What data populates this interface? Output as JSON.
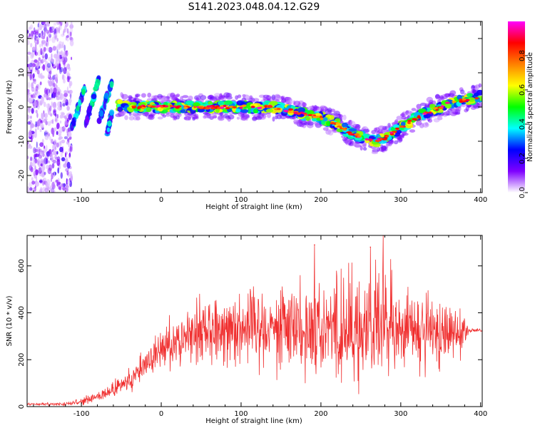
{
  "title": "S141.2023.048.04.12.G29",
  "chart_data": [
    {
      "type": "heatmap",
      "xlabel": "Height of straight line (km)",
      "ylabel": "Frequency (Hz)",
      "xlim": [
        -168,
        402
      ],
      "ylim": [
        -25,
        25
      ],
      "xticks": [
        -100,
        0,
        100,
        200,
        300,
        400
      ],
      "yticks": [
        -20,
        -10,
        0,
        10,
        20
      ],
      "colorbar": {
        "label": "Normalized spectral amplitude",
        "range": [
          0,
          1
        ],
        "ticks": [
          0.0,
          0.2,
          0.4,
          0.6,
          0.8
        ],
        "colormap": [
          "#ffffff",
          "#7f00ff",
          "#0000ff",
          "#00ffff",
          "#00ff00",
          "#ffff00",
          "#ff8000",
          "#ff0000",
          "#ff00ff"
        ]
      },
      "ridge": {
        "x": [
          -55,
          -40,
          -20,
          0,
          20,
          40,
          60,
          80,
          100,
          120,
          140,
          160,
          180,
          200,
          220,
          240,
          260,
          270,
          280,
          300,
          320,
          340,
          360,
          380,
          400
        ],
        "y": [
          0.5,
          0,
          0,
          0,
          0,
          0,
          0,
          0,
          0,
          0,
          0,
          -1,
          -2,
          -3,
          -5,
          -8,
          -9.5,
          -10,
          -9,
          -6,
          -3,
          -1,
          1,
          2,
          3
        ]
      },
      "noise_region_x": [
        -168,
        -112
      ],
      "streaks": [
        {
          "x": [
            -112,
            -95
          ],
          "y": [
            -6,
            6
          ]
        },
        {
          "x": [
            -95,
            -78
          ],
          "y": [
            -5,
            8
          ]
        },
        {
          "x": [
            -78,
            -62
          ],
          "y": [
            -4,
            7
          ]
        },
        {
          "x": [
            -68,
            -62
          ],
          "y": [
            -8,
            -2
          ]
        }
      ]
    },
    {
      "type": "line",
      "xlabel": "Height of straight line (km)",
      "ylabel": "SNR (10 * v/v)",
      "xlim": [
        -168,
        402
      ],
      "ylim": [
        0,
        730
      ],
      "xticks": [
        -100,
        0,
        100,
        200,
        300,
        400
      ],
      "yticks": [
        0,
        200,
        400,
        600
      ],
      "color": "#f03030",
      "envelope": {
        "x": [
          -168,
          -120,
          -100,
          -80,
          -60,
          -40,
          -20,
          0,
          20,
          40,
          60,
          80,
          100,
          120,
          150,
          180,
          200,
          220,
          250,
          270,
          280,
          300,
          320,
          340,
          360,
          380,
          385,
          402
        ],
        "mean": [
          10,
          10,
          20,
          40,
          70,
          110,
          180,
          240,
          290,
          320,
          330,
          340,
          345,
          350,
          350,
          340,
          345,
          340,
          330,
          335,
          340,
          330,
          320,
          310,
          320,
          330,
          325,
          325
        ],
        "amp": [
          6,
          8,
          15,
          30,
          40,
          55,
          80,
          100,
          120,
          140,
          160,
          170,
          180,
          190,
          200,
          230,
          250,
          260,
          270,
          280,
          260,
          240,
          200,
          180,
          150,
          110,
          8,
          8
        ]
      },
      "peak_points": [
        {
          "x": 192,
          "y": 690
        },
        {
          "x": 262,
          "y": 680
        },
        {
          "x": 278,
          "y": 730
        }
      ]
    }
  ]
}
